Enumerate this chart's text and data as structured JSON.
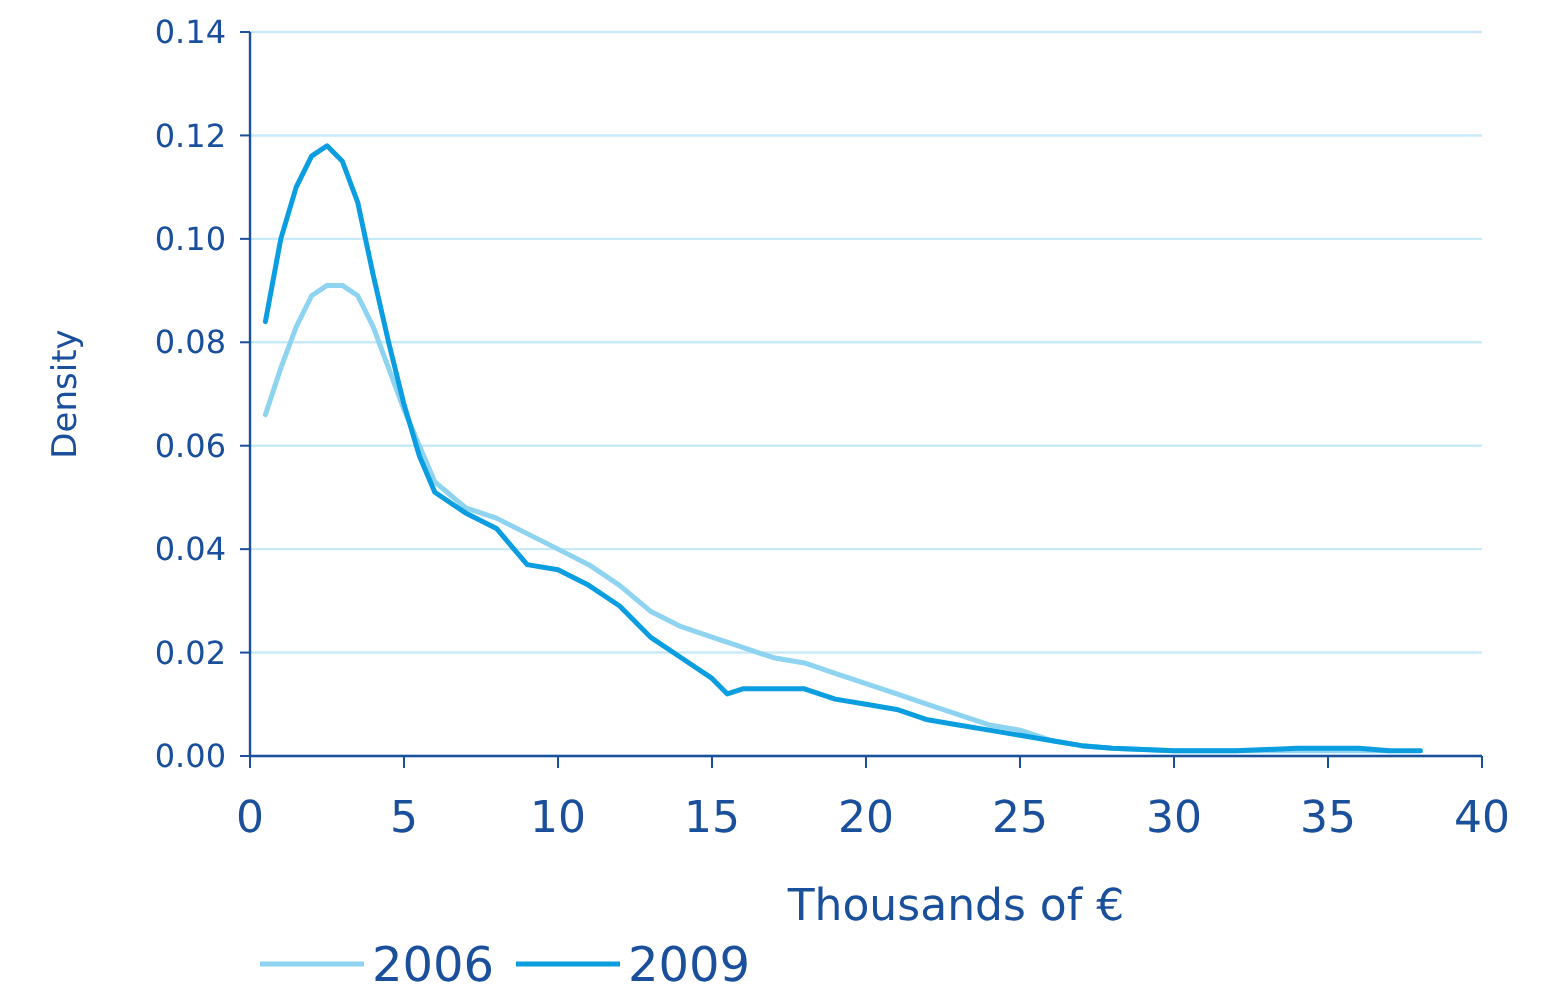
{
  "chart_data": {
    "type": "line",
    "xlabel": "Thousands of  €",
    "ylabel": "Density",
    "xlim": [
      0,
      40
    ],
    "xticks": [
      0,
      5,
      10,
      15,
      20,
      25,
      30,
      35,
      40
    ],
    "ylim": [
      0,
      0.14
    ],
    "yticks": [
      {
        "value": 0,
        "label": "0.00"
      },
      {
        "value": 0.02,
        "label": "0.02"
      },
      {
        "value": 0.04,
        "label": "0.04"
      },
      {
        "value": 0.06,
        "label": "0.06"
      },
      {
        "value": 0.08,
        "label": "0.08"
      },
      {
        "value": 0.1,
        "label": "0.10"
      },
      {
        "value": 0.12,
        "label": "0.12"
      },
      {
        "value": 0.14,
        "label": "0.14"
      }
    ],
    "grid": "y",
    "legend": "bottom",
    "marker": "none",
    "line_style": "solid",
    "x": [
      0.5,
      1,
      1.5,
      2,
      2.5,
      3,
      3.5,
      4,
      4.5,
      5,
      5.5,
      6,
      7,
      8,
      9,
      10,
      11,
      12,
      13,
      14,
      15,
      15.5,
      16,
      17,
      18,
      19,
      20,
      21,
      22,
      23,
      24,
      25,
      26,
      27,
      28,
      30,
      32,
      34,
      36,
      37,
      38
    ],
    "series": [
      {
        "name": "2006",
        "color": "#8ed3f0",
        "x": [
          0.5,
          1,
          1.5,
          2,
          2.5,
          3,
          3.5,
          4,
          4.5,
          5,
          5.5,
          6,
          7,
          8,
          9,
          10,
          11,
          12,
          13,
          14,
          15,
          16,
          17,
          18,
          19,
          20,
          21,
          22,
          23,
          24,
          25,
          26,
          27,
          28,
          30,
          32,
          34,
          36,
          37
        ],
        "values": [
          0.066,
          0.075,
          0.083,
          0.089,
          0.091,
          0.091,
          0.089,
          0.083,
          0.075,
          0.067,
          0.06,
          0.053,
          0.048,
          0.046,
          0.043,
          0.04,
          0.037,
          0.033,
          0.028,
          0.025,
          0.023,
          0.021,
          0.019,
          0.018,
          0.016,
          0.014,
          0.012,
          0.01,
          0.008,
          0.006,
          0.005,
          0.003,
          0.002,
          0.0015,
          0.001,
          0.001,
          0.001,
          0.001,
          0.001
        ]
      },
      {
        "name": "2009",
        "color": "#0a9ee0",
        "values": [
          0.084,
          0.1,
          0.11,
          0.116,
          0.118,
          0.115,
          0.107,
          0.093,
          0.08,
          0.068,
          0.058,
          0.051,
          0.047,
          0.044,
          0.037,
          0.036,
          0.033,
          0.029,
          0.023,
          0.019,
          0.015,
          0.012,
          0.013,
          0.013,
          0.013,
          0.011,
          0.01,
          0.009,
          0.007,
          0.006,
          0.005,
          0.004,
          0.003,
          0.002,
          0.0015,
          0.001,
          0.001,
          0.0015,
          0.0015,
          0.001,
          0.001
        ]
      }
    ]
  }
}
